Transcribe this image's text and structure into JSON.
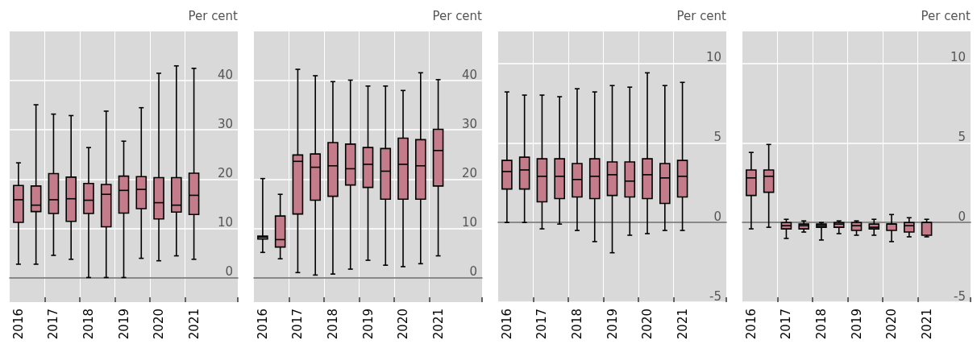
{
  "chart_data": [
    {
      "type": "box",
      "ylabel": "Per cent",
      "categories": [
        "2016",
        null,
        "2017",
        null,
        "2018",
        null,
        "2019",
        null,
        "2020",
        null,
        "2021"
      ],
      "color": "#c47c8b",
      "ylim": [
        -5,
        50
      ],
      "yticks": [
        0,
        10,
        20,
        30,
        40
      ],
      "grid": true,
      "boxes": [
        {
          "low": 2.7,
          "q1": 11.2,
          "median": 15.8,
          "q3": 18.7,
          "high": 23.3
        },
        {
          "low": 2.7,
          "q1": 13.4,
          "median": 14.7,
          "q3": 18.6,
          "high": 35.1
        },
        {
          "low": 4.5,
          "q1": 13.0,
          "median": 15.8,
          "q3": 21.1,
          "high": 33.2
        },
        {
          "low": 3.7,
          "q1": 11.4,
          "median": 16.0,
          "q3": 20.4,
          "high": 32.9
        },
        {
          "low": 0,
          "q1": 13.0,
          "median": 15.7,
          "q3": 19.1,
          "high": 26.4
        },
        {
          "low": 0,
          "q1": 10.3,
          "median": 16.9,
          "q3": 18.9,
          "high": 33.8
        },
        {
          "low": 0,
          "q1": 13.1,
          "median": 17.7,
          "q3": 20.6,
          "high": 27.7
        },
        {
          "low": 3.9,
          "q1": 14.0,
          "median": 17.9,
          "q3": 20.5,
          "high": 34.5
        },
        {
          "low": 3.4,
          "q1": 11.9,
          "median": 15.2,
          "q3": 20.3,
          "high": 41.5
        },
        {
          "low": 4.4,
          "q1": 13.3,
          "median": 14.7,
          "q3": 20.3,
          "high": 43.0
        },
        {
          "low": 3.7,
          "q1": 12.8,
          "median": 16.7,
          "q3": 21.2,
          "high": 42.5
        }
      ]
    },
    {
      "type": "box",
      "ylabel": "Per cent",
      "categories": [
        "2016",
        null,
        "2017",
        null,
        "2018",
        null,
        "2019",
        null,
        "2020",
        null,
        "2021"
      ],
      "color": "#c47c8b",
      "ylim": [
        -5,
        50
      ],
      "yticks": [
        0,
        10,
        20,
        30,
        40
      ],
      "grid": true,
      "boxes": [
        {
          "low": 5.1,
          "q1": 7.8,
          "median": 8.2,
          "q3": 8.4,
          "high": 20.1
        },
        {
          "low": 3.8,
          "q1": 6.2,
          "median": 7.7,
          "q3": 12.5,
          "high": 16.9
        },
        {
          "low": 1.0,
          "q1": 12.9,
          "median": 23.6,
          "q3": 24.9,
          "high": 42.3
        },
        {
          "low": 0.5,
          "q1": 15.7,
          "median": 22.4,
          "q3": 25.1,
          "high": 41.0
        },
        {
          "low": 0.7,
          "q1": 16.5,
          "median": 22.7,
          "q3": 27.4,
          "high": 39.8
        },
        {
          "low": 1.7,
          "q1": 18.8,
          "median": 22.1,
          "q3": 27.1,
          "high": 40.1
        },
        {
          "low": 3.5,
          "q1": 18.3,
          "median": 23.0,
          "q3": 26.4,
          "high": 38.9
        },
        {
          "low": 2.5,
          "q1": 15.9,
          "median": 21.6,
          "q3": 26.2,
          "high": 38.9
        },
        {
          "low": 2.2,
          "q1": 15.9,
          "median": 23.0,
          "q3": 28.3,
          "high": 38.0
        },
        {
          "low": 2.8,
          "q1": 15.9,
          "median": 22.7,
          "q3": 28.0,
          "high": 41.6
        },
        {
          "low": 4.4,
          "q1": 18.6,
          "median": 25.8,
          "q3": 30.1,
          "high": 40.2
        }
      ]
    },
    {
      "type": "box",
      "ylabel": "Per cent",
      "categories": [
        "2016",
        null,
        "2017",
        null,
        "2018",
        null,
        "2019",
        null,
        "2020",
        null,
        "2021"
      ],
      "color": "#c47c8b",
      "ylim": [
        -5,
        12
      ],
      "yticks": [
        -5,
        0,
        5,
        10
      ],
      "grid": true,
      "boxes": [
        {
          "low": 0,
          "q1": 2.1,
          "median": 3.2,
          "q3": 3.9,
          "high": 8.2
        },
        {
          "low": 0,
          "q1": 2.1,
          "median": 3.3,
          "q3": 4.1,
          "high": 8.0
        },
        {
          "low": -0.4,
          "q1": 1.3,
          "median": 2.9,
          "q3": 4.0,
          "high": 8.0
        },
        {
          "low": -0.1,
          "q1": 1.5,
          "median": 2.9,
          "q3": 4.0,
          "high": 7.9
        },
        {
          "low": -0.5,
          "q1": 1.6,
          "median": 2.7,
          "q3": 3.7,
          "high": 8.4
        },
        {
          "low": -1.2,
          "q1": 1.5,
          "median": 2.9,
          "q3": 4.0,
          "high": 8.2
        },
        {
          "low": -1.9,
          "q1": 1.7,
          "median": 3.0,
          "q3": 3.8,
          "high": 8.6
        },
        {
          "low": -0.8,
          "q1": 1.6,
          "median": 2.6,
          "q3": 3.8,
          "high": 8.5
        },
        {
          "low": -0.7,
          "q1": 1.5,
          "median": 3.0,
          "q3": 4.0,
          "high": 9.4
        },
        {
          "low": -0.5,
          "q1": 1.2,
          "median": 2.8,
          "q3": 3.7,
          "high": 8.6
        },
        {
          "low": -0.5,
          "q1": 1.6,
          "median": 2.9,
          "q3": 3.9,
          "high": 8.8
        }
      ]
    },
    {
      "type": "box",
      "ylabel": "Per cent",
      "categories": [
        "2016",
        null,
        "2017",
        null,
        "2018",
        null,
        "2019",
        null,
        "2020",
        null,
        "2021"
      ],
      "color": "#c47c8b",
      "ylim": [
        -5,
        12
      ],
      "yticks": [
        -5,
        0,
        5,
        10
      ],
      "grid": true,
      "boxes": [
        {
          "low": -0.4,
          "q1": 1.7,
          "median": 2.8,
          "q3": 3.3,
          "high": 4.4
        },
        {
          "low": -0.3,
          "q1": 1.9,
          "median": 2.9,
          "q3": 3.3,
          "high": 4.9
        },
        {
          "low": -1.0,
          "q1": -0.4,
          "median": -0.2,
          "q3": 0.0,
          "high": 0.2
        },
        {
          "low": -0.6,
          "q1": -0.4,
          "median": -0.2,
          "q3": -0.1,
          "high": 0.1
        },
        {
          "low": -1.1,
          "q1": -0.3,
          "median": -0.2,
          "q3": -0.1,
          "high": 0.0
        },
        {
          "low": -0.7,
          "q1": -0.3,
          "median": -0.1,
          "q3": 0.0,
          "high": 0.1
        },
        {
          "low": -0.8,
          "q1": -0.5,
          "median": -0.2,
          "q3": 0.0,
          "high": 0.1
        },
        {
          "low": -0.8,
          "q1": -0.4,
          "median": -0.3,
          "q3": -0.1,
          "high": 0.2
        },
        {
          "low": -1.2,
          "q1": -0.5,
          "median": -0.1,
          "q3": -0.1,
          "high": 0.5
        },
        {
          "low": -0.9,
          "q1": -0.6,
          "median": -0.2,
          "q3": 0.0,
          "high": 0.3
        },
        {
          "low": -0.9,
          "q1": -0.8,
          "median": 0.0,
          "q3": 0.0,
          "high": 0.2
        }
      ]
    }
  ]
}
